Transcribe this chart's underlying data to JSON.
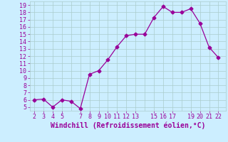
{
  "x": [
    2,
    3,
    4,
    5,
    6,
    7,
    8,
    9,
    10,
    11,
    12,
    13,
    14,
    15,
    16,
    17,
    18,
    19,
    20,
    21,
    22
  ],
  "y": [
    6.0,
    6.1,
    5.0,
    6.0,
    5.8,
    4.8,
    9.5,
    10.0,
    11.5,
    13.3,
    14.8,
    15.0,
    15.0,
    17.3,
    18.8,
    18.0,
    18.0,
    18.5,
    16.5,
    13.2,
    11.8
  ],
  "line_color": "#990099",
  "marker": "D",
  "marker_size": 2.5,
  "bg_color": "#cceeff",
  "grid_color": "#aacccc",
  "xlabel": "Windchill (Refroidissement éolien,°C)",
  "xlabel_color": "#990099",
  "xtick_positions": [
    2,
    3,
    4,
    5,
    7,
    8,
    9,
    10,
    11,
    12,
    13,
    15,
    16,
    17,
    19,
    20,
    21,
    22
  ],
  "xtick_labels": [
    "2",
    "3",
    "4",
    "5",
    "7",
    "8",
    "9",
    "10",
    "11",
    "12",
    "13",
    "15",
    "16",
    "17",
    "19",
    "20",
    "21",
    "22"
  ],
  "xlim": [
    1.5,
    22.8
  ],
  "ylim": [
    4.5,
    19.5
  ],
  "yticks": [
    5,
    6,
    7,
    8,
    9,
    10,
    11,
    12,
    13,
    14,
    15,
    16,
    17,
    18,
    19
  ],
  "tick_color": "#990099",
  "tick_fontsize": 6,
  "xlabel_fontsize": 7
}
